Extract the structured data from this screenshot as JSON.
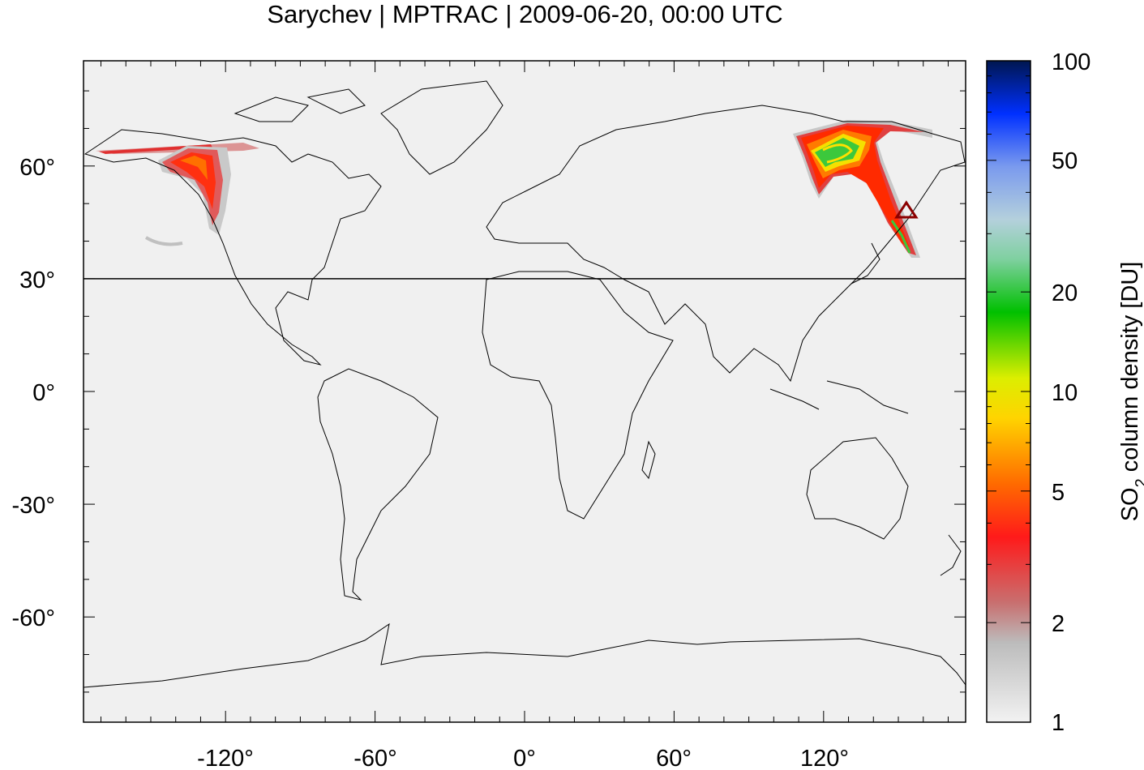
{
  "title": "Sarychev | MPTRAC | 2009-06-20, 00:00 UTC",
  "map": {
    "lon_range": [
      -177,
      177
    ],
    "lat_range": [
      -88,
      88
    ],
    "x_ticks": [
      "-120°",
      "-60°",
      "0°",
      "60°",
      "120°"
    ],
    "x_tick_values": [
      -120,
      -60,
      0,
      60,
      120
    ],
    "y_ticks": [
      "60°",
      "30°",
      "0°",
      "-30°",
      "-60°"
    ],
    "y_tick_values": [
      60,
      30,
      0,
      -30,
      -60
    ],
    "reference_line_lat": 30,
    "volcano_marker": {
      "name": "volcano-triangle",
      "lon": 153.2,
      "lat": 48.1
    },
    "background_color": "#f0f0f0",
    "coastline_color": "#000000",
    "marker_color": "#8b0000"
  },
  "colorbar": {
    "label": "SO2 column density [DU]",
    "label_main": "SO",
    "label_sub": "2",
    "label_rest": " column density [DU]",
    "scale": "log",
    "tick_labels": [
      "1",
      "2",
      "5",
      "10",
      "20",
      "50",
      "100"
    ],
    "tick_values": [
      1,
      2,
      5,
      10,
      20,
      50,
      100
    ],
    "colors": [
      "#f2f2f2",
      "#bdbdbd",
      "#c86464",
      "#ff0000",
      "#ff6400",
      "#ffdc00",
      "#f0ff00",
      "#00c800",
      "#9fd4bb",
      "#b7c7dc",
      "#0030ff",
      "#001a6e"
    ]
  }
}
